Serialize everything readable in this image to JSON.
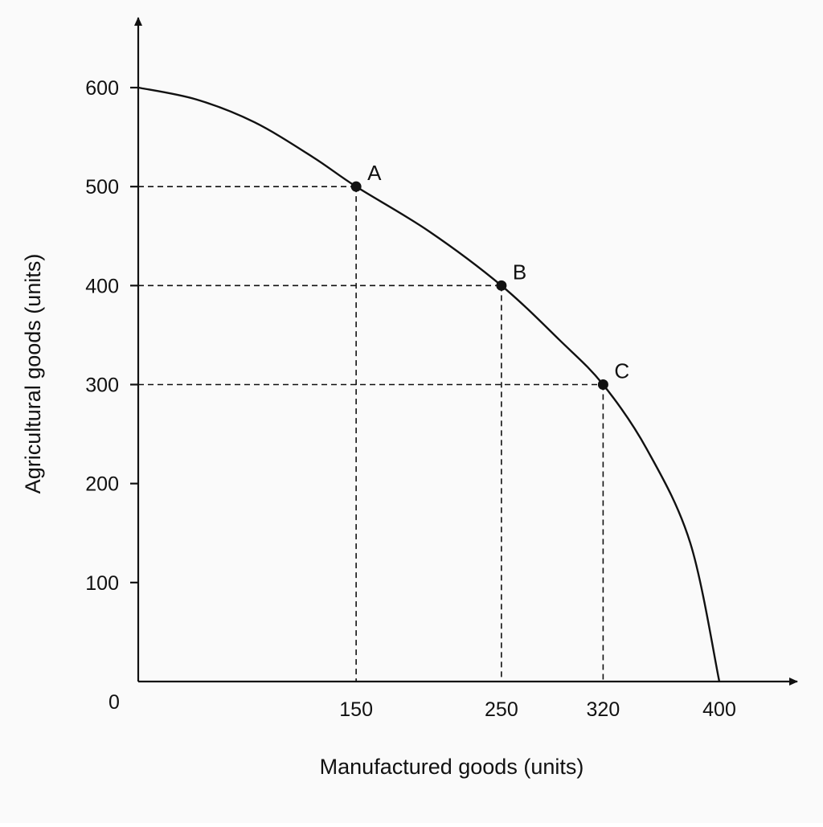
{
  "chart_data": {
    "type": "line",
    "title": "",
    "xlabel": "Manufactured goods (units)",
    "ylabel": "Agricultural goods (units)",
    "xlim": [
      0,
      400
    ],
    "ylim": [
      0,
      600
    ],
    "origin_label": "0",
    "x_ticks": [
      150,
      250,
      320,
      400
    ],
    "y_ticks": [
      100,
      200,
      300,
      400,
      500,
      600
    ],
    "grid": false,
    "legend": "none",
    "series": [
      {
        "x": [
          0,
          40,
          80,
          120,
          150,
          200,
          250,
          290,
          320,
          350,
          380,
          400
        ],
        "y": [
          600,
          588,
          565,
          530,
          500,
          455,
          400,
          345,
          300,
          235,
          140,
          0
        ]
      }
    ],
    "points": [
      {
        "label": "A",
        "x": 150,
        "y": 500
      },
      {
        "label": "B",
        "x": 250,
        "y": 400
      },
      {
        "label": "C",
        "x": 320,
        "y": 300
      }
    ],
    "colors": {
      "ink": "#111111",
      "background": "#fafafa"
    }
  }
}
